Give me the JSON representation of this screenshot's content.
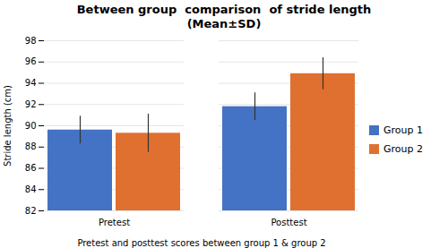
{
  "chart_data": {
    "type": "bar",
    "title": "Between group  comparison  of stride length\n(Mean±SD)",
    "xlabel": "Pretest and posttest scores between group 1 & group 2",
    "ylabel": "Stride length (cm)",
    "categories": [
      "Pretest",
      "Posttest"
    ],
    "series": [
      {
        "name": "Group 1",
        "color": "#4472C4",
        "values": [
          89.6,
          91.8
        ],
        "errors": [
          1.3,
          1.3
        ]
      },
      {
        "name": "Group 2",
        "color": "#E07030",
        "values": [
          89.3,
          94.9
        ],
        "errors": [
          1.8,
          1.5
        ]
      }
    ],
    "ylim": [
      82,
      98
    ],
    "yticks": [
      82,
      84,
      86,
      88,
      90,
      92,
      94,
      96,
      98
    ],
    "grid": true,
    "legend": "right"
  }
}
